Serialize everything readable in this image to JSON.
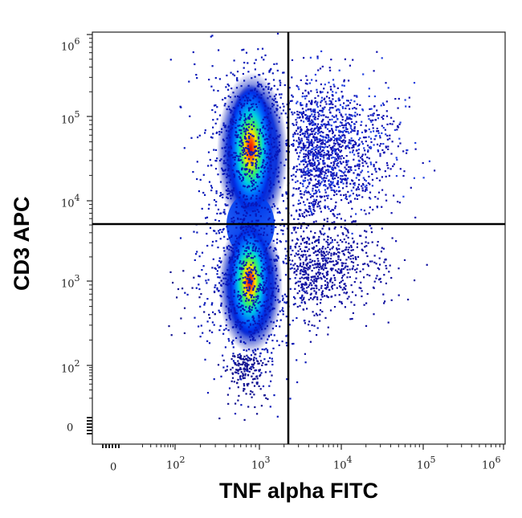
{
  "chart_data": {
    "type": "scatter",
    "subtype": "flow-cytometry-density-dot-plot",
    "title": "",
    "xlabel": "TNF alpha FITC",
    "ylabel": "CD3 APC",
    "x_scale": "biexponential/log",
    "y_scale": "biexponential/log",
    "x_ticks": [
      "0",
      "10^2",
      "10^3",
      "10^4",
      "10^5",
      "10^6"
    ],
    "y_ticks": [
      "0",
      "10^2",
      "10^3",
      "10^4",
      "10^5",
      "10^6"
    ],
    "xlim": [
      "<0",
      1000000
    ],
    "ylim": [
      "<0",
      1000000
    ],
    "quadrant_gates": {
      "x": 2300,
      "y": 4800
    },
    "populations": [
      {
        "name": "CD3+ TNF-",
        "center_x": 800,
        "center_y": 40000,
        "peak_density": "high",
        "quadrant": "upper-left"
      },
      {
        "name": "CD3- TNF-",
        "center_x": 800,
        "center_y": 1000,
        "peak_density": "high",
        "quadrant": "lower-left"
      },
      {
        "name": "CD3+ TNF+",
        "center_x": 5000,
        "center_y": 40000,
        "peak_density": "low (sparse spread to ~10^5)",
        "quadrant": "upper-right"
      },
      {
        "name": "CD3- TNF+",
        "center_x": 5000,
        "center_y": 1500,
        "peak_density": "very low",
        "quadrant": "lower-right"
      }
    ],
    "color_scale": [
      "#00008b",
      "#0000ff",
      "#00bfff",
      "#00ff80",
      "#ffff00",
      "#ff0000"
    ],
    "grid": false,
    "legend": null
  },
  "axes": {
    "x": {
      "label": "TNF alpha FITC",
      "ticks": [
        {
          "base": "0",
          "exp": ""
        },
        {
          "base": "10",
          "exp": "2"
        },
        {
          "base": "10",
          "exp": "3"
        },
        {
          "base": "10",
          "exp": "4"
        },
        {
          "base": "10",
          "exp": "5"
        },
        {
          "base": "10",
          "exp": "6"
        }
      ]
    },
    "y": {
      "label": "CD3 APC",
      "ticks": [
        {
          "base": "10",
          "exp": "6"
        },
        {
          "base": "10",
          "exp": "5"
        },
        {
          "base": "10",
          "exp": "4"
        },
        {
          "base": "10",
          "exp": "3"
        },
        {
          "base": "10",
          "exp": "2"
        },
        {
          "base": "0",
          "exp": ""
        }
      ]
    }
  }
}
